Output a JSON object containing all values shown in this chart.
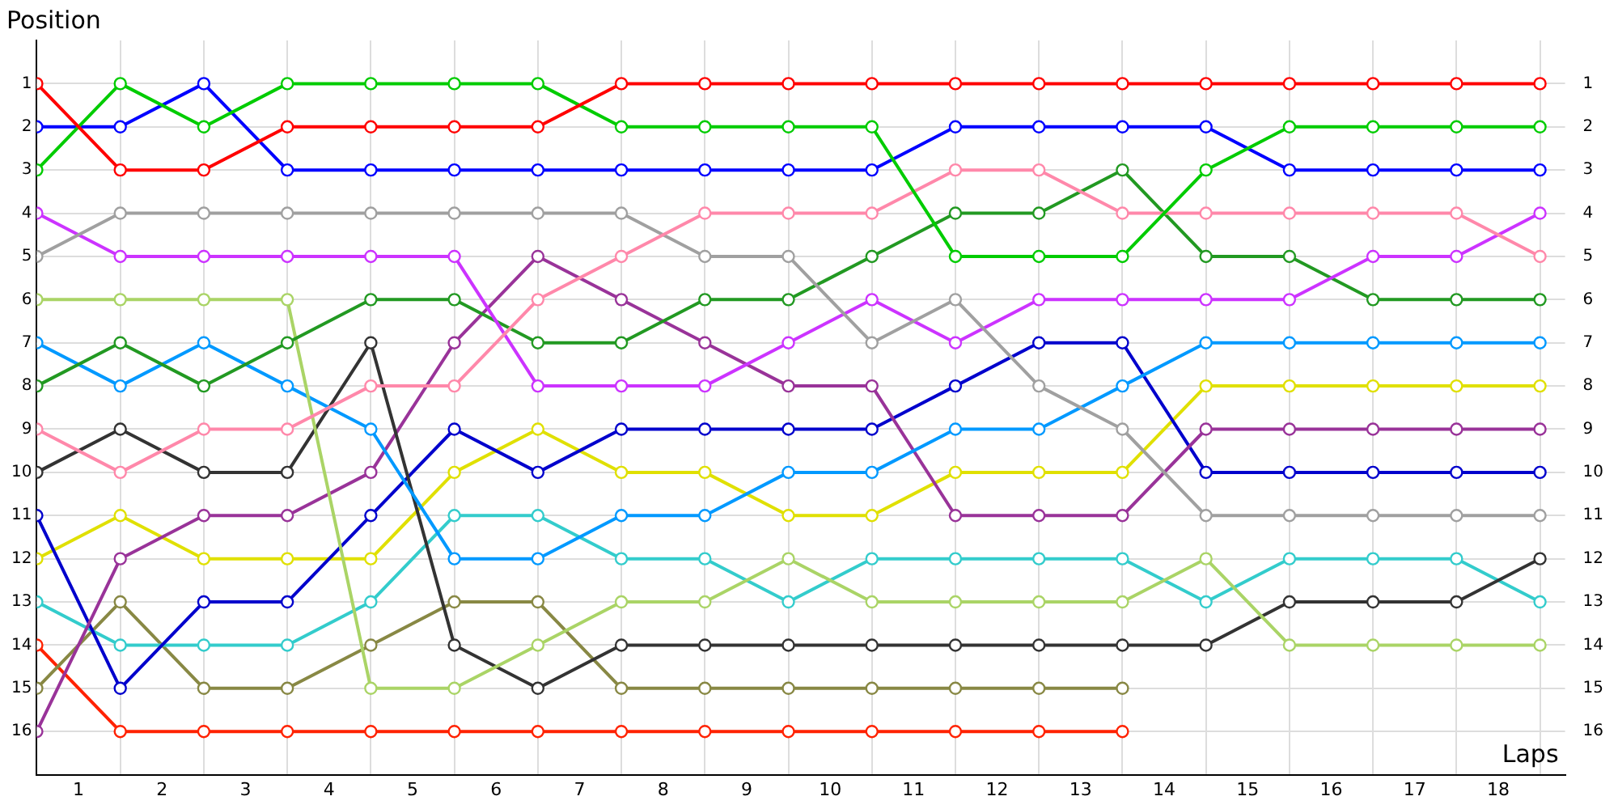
{
  "chart_data": {
    "type": "line",
    "xlabel": "Laps",
    "ylabel": "Position",
    "x": [
      0,
      1,
      2,
      3,
      4,
      5,
      6,
      7,
      8,
      9,
      10,
      11,
      12,
      13,
      14,
      15,
      16,
      17,
      18
    ],
    "xlim": [
      0,
      18.3
    ],
    "xticks": [
      {
        "value": 0,
        "label": null
      },
      {
        "value": 0.5,
        "label": "1"
      },
      {
        "value": 1,
        "label": null
      },
      {
        "value": 1.5,
        "label": "2"
      },
      {
        "value": 2,
        "label": null
      },
      {
        "value": 2.5,
        "label": "3"
      },
      {
        "value": 3,
        "label": null
      },
      {
        "value": 3.5,
        "label": "4"
      },
      {
        "value": 4,
        "label": null
      },
      {
        "value": 4.5,
        "label": "5"
      },
      {
        "value": 5,
        "label": null
      },
      {
        "value": 5.5,
        "label": "6"
      },
      {
        "value": 6,
        "label": null
      },
      {
        "value": 6.5,
        "label": "7"
      },
      {
        "value": 7,
        "label": null
      },
      {
        "value": 7.5,
        "label": "8"
      },
      {
        "value": 8,
        "label": null
      },
      {
        "value": 8.5,
        "label": "9"
      },
      {
        "value": 9,
        "label": null
      },
      {
        "value": 9.5,
        "label": "10"
      },
      {
        "value": 10,
        "label": null
      },
      {
        "value": 10.5,
        "label": "11"
      },
      {
        "value": 11,
        "label": null
      },
      {
        "value": 11.5,
        "label": "12"
      },
      {
        "value": 12,
        "label": null
      },
      {
        "value": 12.5,
        "label": "13"
      },
      {
        "value": 13,
        "label": null
      },
      {
        "value": 13.5,
        "label": "14"
      },
      {
        "value": 14,
        "label": null
      },
      {
        "value": 14.5,
        "label": "15"
      },
      {
        "value": 15,
        "label": null
      },
      {
        "value": 15.5,
        "label": "16"
      },
      {
        "value": 16,
        "label": null
      },
      {
        "value": 16.5,
        "label": "17"
      },
      {
        "value": 17,
        "label": null
      },
      {
        "value": 17.5,
        "label": "18"
      },
      {
        "value": 18,
        "label": null
      }
    ],
    "ylim": [
      17,
      0
    ],
    "yticks": [
      1,
      2,
      3,
      4,
      5,
      6,
      7,
      8,
      9,
      10,
      11,
      12,
      13,
      14,
      15,
      16
    ],
    "y2lim": [
      17,
      0
    ],
    "y2ticks": [
      1,
      2,
      3,
      4,
      5,
      6,
      7,
      8,
      9,
      10,
      11,
      12,
      13,
      14,
      15,
      16
    ],
    "grid": true,
    "legend": false,
    "marker": "circle",
    "line_style": "solid",
    "series": [
      {
        "color": "#ff0000",
        "values": [
          1,
          3,
          3,
          2,
          2,
          2,
          2,
          1,
          1,
          1,
          1,
          1,
          1,
          1,
          1,
          1,
          1,
          1,
          1
        ]
      },
      {
        "color": "#00cc00",
        "values": [
          3,
          1,
          2,
          1,
          1,
          1,
          1,
          2,
          2,
          2,
          2,
          5,
          5,
          5,
          3,
          2,
          2,
          2,
          2
        ]
      },
      {
        "color": "#0000ff",
        "values": [
          2,
          2,
          1,
          3,
          3,
          3,
          3,
          3,
          3,
          3,
          3,
          2,
          2,
          2,
          2,
          3,
          3,
          3,
          3
        ]
      },
      {
        "color": "#ff88aa",
        "values": [
          9,
          10,
          9,
          9,
          8,
          8,
          6,
          5,
          4,
          4,
          4,
          3,
          3,
          4,
          4,
          4,
          4,
          4,
          5
        ]
      },
      {
        "color": "#a0a0a0",
        "values": [
          5,
          4,
          4,
          4,
          4,
          4,
          4,
          4,
          5,
          5,
          7,
          6,
          8,
          9,
          11,
          11,
          11,
          11,
          11
        ]
      },
      {
        "color": "#cc33ff",
        "values": [
          4,
          5,
          5,
          5,
          5,
          5,
          8,
          8,
          8,
          7,
          6,
          7,
          6,
          6,
          6,
          6,
          5,
          5,
          4
        ]
      },
      {
        "color": "#229922",
        "values": [
          8,
          7,
          8,
          7,
          6,
          6,
          7,
          7,
          6,
          6,
          5,
          4,
          4,
          3,
          5,
          5,
          6,
          6,
          6
        ]
      },
      {
        "color": "#aad466",
        "values": [
          6,
          6,
          6,
          6,
          15,
          15,
          14,
          13,
          13,
          12,
          13,
          13,
          13,
          13,
          12,
          14,
          14,
          14,
          14
        ]
      },
      {
        "color": "#0099ff",
        "values": [
          7,
          8,
          7,
          8,
          9,
          12,
          12,
          11,
          11,
          10,
          10,
          9,
          9,
          8,
          7,
          7,
          7,
          7,
          7
        ]
      },
      {
        "color": "#333333",
        "values": [
          10,
          9,
          10,
          10,
          7,
          14,
          15,
          14,
          14,
          14,
          14,
          14,
          14,
          14,
          14,
          13,
          13,
          13,
          12
        ]
      },
      {
        "color": "#993399",
        "values": [
          16,
          12,
          11,
          11,
          10,
          7,
          5,
          6,
          7,
          8,
          8,
          11,
          11,
          11,
          9,
          9,
          9,
          9,
          9
        ]
      },
      {
        "color": "#0000cc",
        "values": [
          11,
          15,
          13,
          13,
          11,
          9,
          10,
          9,
          9,
          9,
          9,
          8,
          7,
          7,
          10,
          10,
          10,
          10,
          10
        ]
      },
      {
        "color": "#e0e000",
        "values": [
          12,
          11,
          12,
          12,
          12,
          10,
          9,
          10,
          10,
          11,
          11,
          10,
          10,
          10,
          8,
          8,
          8,
          8,
          8
        ]
      },
      {
        "color": "#33cccc",
        "values": [
          13,
          14,
          14,
          14,
          13,
          11,
          11,
          12,
          12,
          13,
          12,
          12,
          12,
          12,
          13,
          12,
          12,
          12,
          13
        ]
      },
      {
        "color": "#888844",
        "values": [
          15,
          13,
          15,
          15,
          14,
          13,
          13,
          15,
          15,
          15,
          15,
          15,
          15,
          15,
          null,
          null,
          null,
          null,
          null
        ]
      },
      {
        "color": "#ff2200",
        "values": [
          14,
          16,
          16,
          16,
          16,
          16,
          16,
          16,
          16,
          16,
          16,
          16,
          16,
          16,
          null,
          null,
          null,
          null,
          null
        ]
      }
    ]
  }
}
